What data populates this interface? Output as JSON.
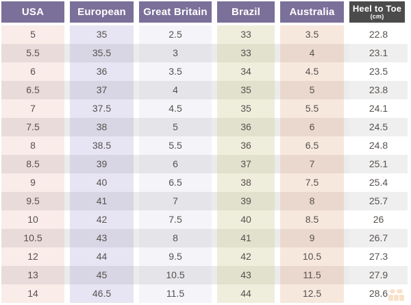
{
  "chart_data": {
    "type": "table",
    "columns": [
      "USA",
      "European",
      "Great Britain",
      "Brazil",
      "Australia",
      "Heel to Toe (cm)"
    ],
    "rows": [
      [
        5,
        35,
        2.5,
        33,
        3.5,
        22.8
      ],
      [
        5.5,
        35.5,
        3,
        33,
        4,
        23.1
      ],
      [
        6,
        36,
        3.5,
        34,
        4.5,
        23.5
      ],
      [
        6.5,
        37,
        4,
        35,
        5,
        23.8
      ],
      [
        7,
        37.5,
        4.5,
        35,
        5.5,
        24.1
      ],
      [
        7.5,
        38,
        5,
        36,
        6,
        24.5
      ],
      [
        8,
        38.5,
        5.5,
        36,
        6.5,
        24.8
      ],
      [
        8.5,
        39,
        6,
        37,
        7,
        25.1
      ],
      [
        9,
        40,
        6.5,
        38,
        7.5,
        25.4
      ],
      [
        9.5,
        41,
        7,
        39,
        8,
        25.7
      ],
      [
        10,
        42,
        7.5,
        40,
        8.5,
        26
      ],
      [
        10.5,
        43,
        8,
        41,
        9,
        26.7
      ],
      [
        12,
        44,
        9.5,
        42,
        10.5,
        27.3
      ],
      [
        13,
        45,
        10.5,
        43,
        11.5,
        27.9
      ],
      [
        14,
        46.5,
        11.5,
        44,
        12.5,
        28.6
      ]
    ],
    "layout": "column-tinted table, alternating shaded rows, no gridlines"
  },
  "headers": [
    {
      "label": "USA"
    },
    {
      "label": "European"
    },
    {
      "label": "Great Britain"
    },
    {
      "label": "Brazil"
    },
    {
      "label": "Australia"
    },
    {
      "label": "Heel to Toe",
      "sublabel": "(cm)"
    }
  ],
  "colors": {
    "header_purple": "#7b7099",
    "header_dark": "#4b4b4b",
    "header_text": "#ffffff",
    "cell_text": "#56504d",
    "alt_row_bg": "#ebebeb",
    "column_light": [
      "#f9ece9",
      "#e7e5f3",
      "#f5f4f8",
      "#efeedd",
      "#f7e8de",
      "#ffffff"
    ],
    "column_alt": [
      "#e9dbd9",
      "#d8d6e4",
      "#e5e4e9",
      "#e1e1cd",
      "#ead8ce",
      "#efefef"
    ]
  },
  "watermark": {
    "icon": "site-logo",
    "color": "#eda75f"
  }
}
